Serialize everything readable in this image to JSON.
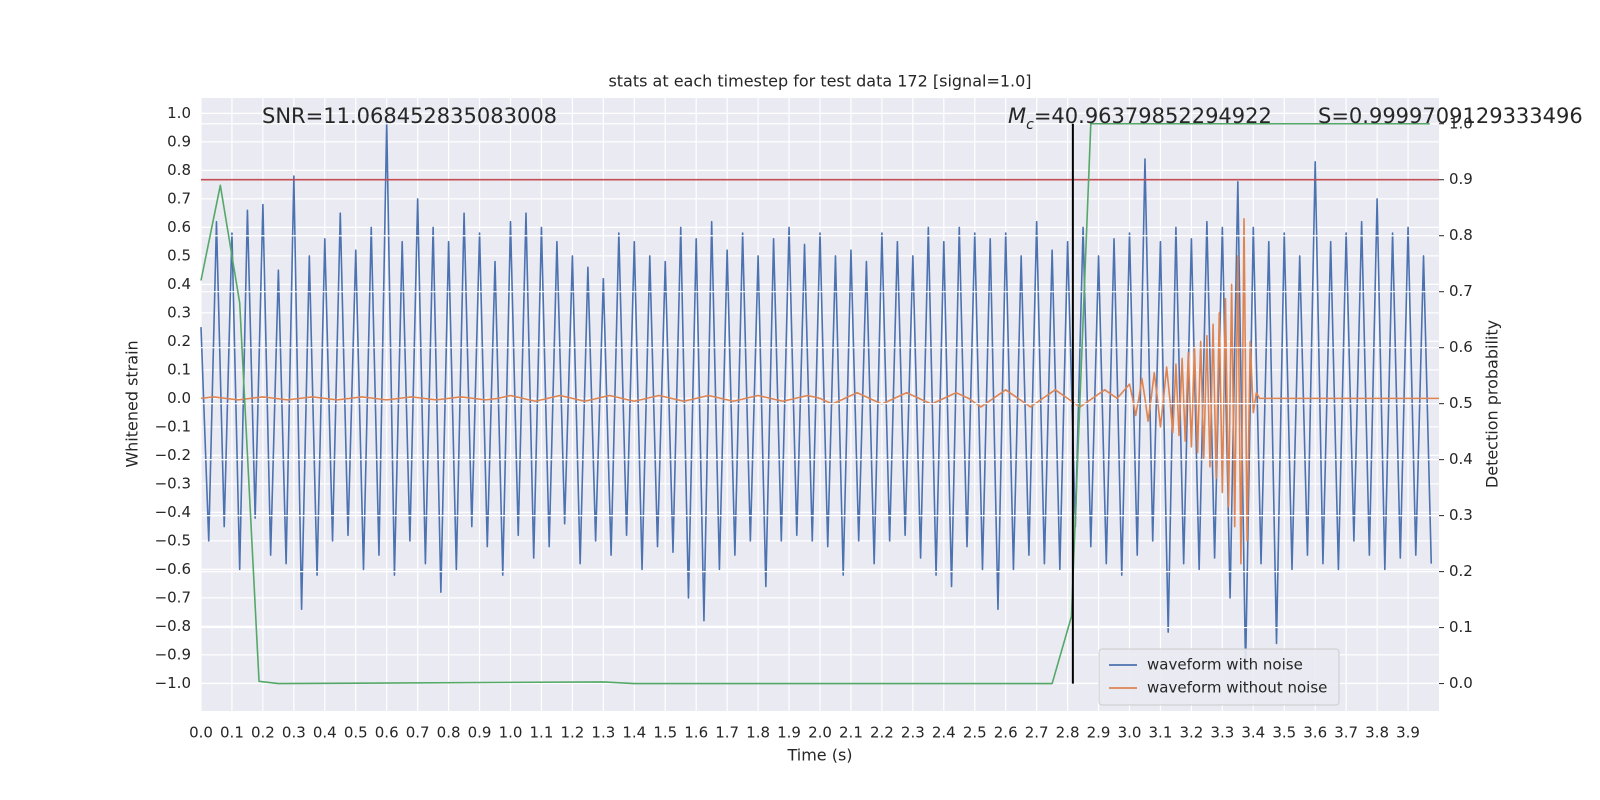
{
  "chart_data": {
    "type": "line",
    "title": "stats at each timestep for test data 172 [signal=1.0]",
    "x_label": "Time (s)",
    "y_label": "Whitened strain",
    "y2_label": "Detection probability",
    "annotations": {
      "snr": "SNR=11.068452835083008",
      "mc_symbol": "M",
      "mc_subscript": "c",
      "mc_value": "=40.96379852294922",
      "s": "S=0.9999709129333496"
    },
    "xlim": [
      0,
      4.0
    ],
    "ylim": [
      -1.097,
      1.054
    ],
    "y2lim": [
      -0.049,
      1.046
    ],
    "xticks": [
      {
        "value": 0,
        "label": "0.0"
      },
      0.1,
      0.2,
      0.3,
      0.4,
      0.5,
      0.6,
      0.7,
      0.8,
      0.9,
      {
        "value": 1,
        "label": "1.0"
      },
      1.1,
      1.2,
      1.3,
      1.4,
      1.5,
      1.6,
      1.7,
      1.8,
      1.9,
      {
        "value": 2,
        "label": "2.0"
      },
      2.1,
      2.2,
      2.3,
      2.4,
      2.5,
      2.6,
      2.7,
      2.8,
      2.9,
      {
        "value": 3,
        "label": "3.0"
      },
      3.1,
      3.2,
      3.3,
      3.4,
      3.5,
      3.6,
      3.7,
      3.8,
      3.9
    ],
    "yticks": [
      {
        "value": -1,
        "label": "−1.0"
      },
      {
        "value": -0.9,
        "label": "−0.9"
      },
      {
        "value": -0.8,
        "label": "−0.8"
      },
      {
        "value": -0.7,
        "label": "−0.7"
      },
      {
        "value": -0.6,
        "label": "−0.6"
      },
      {
        "value": -0.5,
        "label": "−0.5"
      },
      {
        "value": -0.4,
        "label": "−0.4"
      },
      {
        "value": -0.3,
        "label": "−0.3"
      },
      {
        "value": -0.2,
        "label": "−0.2"
      },
      {
        "value": -0.1,
        "label": "−0.1"
      },
      {
        "value": 0,
        "label": "0.0"
      },
      0.1,
      0.2,
      0.3,
      0.4,
      0.5,
      0.6,
      0.7,
      0.8,
      0.9,
      {
        "value": 1,
        "label": "1.0"
      }
    ],
    "y2ticks": [
      {
        "value": 0,
        "label": "0.0"
      },
      0.1,
      0.2,
      0.3,
      0.4,
      0.5,
      0.6,
      0.7,
      0.8,
      0.9,
      {
        "value": 1,
        "label": "1.0"
      }
    ],
    "grid": true,
    "legend": "lower right",
    "series": [
      {
        "name": "waveform with noise",
        "color": "#4c72b0",
        "x": [
          0,
          0.025,
          0.05,
          0.075,
          0.1,
          0.125,
          0.15,
          0.175,
          0.2,
          0.225,
          0.25,
          0.275,
          0.3,
          0.325,
          0.35,
          0.375,
          0.4,
          0.425,
          0.45,
          0.475,
          0.5,
          0.525,
          0.55,
          0.575,
          0.6,
          0.625,
          0.65,
          0.675,
          0.7,
          0.725,
          0.75,
          0.775,
          0.8,
          0.825,
          0.85,
          0.875,
          0.9,
          0.925,
          0.95,
          0.975,
          1,
          1.025,
          1.05,
          1.075,
          1.1,
          1.125,
          1.15,
          1.175,
          1.2,
          1.225,
          1.25,
          1.275,
          1.3,
          1.325,
          1.35,
          1.375,
          1.4,
          1.425,
          1.45,
          1.475,
          1.5,
          1.525,
          1.55,
          1.575,
          1.6,
          1.625,
          1.65,
          1.675,
          1.7,
          1.725,
          1.75,
          1.775,
          1.8,
          1.825,
          1.85,
          1.875,
          1.9,
          1.925,
          1.95,
          1.975,
          2,
          2.025,
          2.05,
          2.075,
          2.1,
          2.125,
          2.15,
          2.175,
          2.2,
          2.225,
          2.25,
          2.275,
          2.3,
          2.325,
          2.35,
          2.375,
          2.4,
          2.425,
          2.45,
          2.475,
          2.5,
          2.525,
          2.55,
          2.575,
          2.6,
          2.625,
          2.65,
          2.675,
          2.7,
          2.725,
          2.75,
          2.775,
          2.8,
          2.825,
          2.85,
          2.875,
          2.9,
          2.925,
          2.95,
          2.975,
          3,
          3.025,
          3.05,
          3.075,
          3.1,
          3.125,
          3.15,
          3.175,
          3.2,
          3.225,
          3.25,
          3.275,
          3.3,
          3.325,
          3.35,
          3.375,
          3.4,
          3.425,
          3.45,
          3.475,
          3.5,
          3.525,
          3.55,
          3.575,
          3.6,
          3.625,
          3.65,
          3.675,
          3.7,
          3.725,
          3.75,
          3.775,
          3.8,
          3.825,
          3.85,
          3.875,
          3.9,
          3.925,
          3.95,
          3.975
        ],
        "values": [
          0.25,
          -0.5,
          0.62,
          -0.45,
          0.58,
          -0.6,
          0.66,
          -0.42,
          0.68,
          -0.55,
          0.45,
          -0.58,
          0.78,
          -0.74,
          0.5,
          -0.62,
          0.56,
          -0.5,
          0.65,
          -0.48,
          0.52,
          -0.6,
          0.6,
          -0.55,
          0.97,
          -0.62,
          0.55,
          -0.5,
          0.7,
          -0.58,
          0.6,
          -0.68,
          0.55,
          -0.6,
          0.65,
          -0.45,
          0.58,
          -0.52,
          0.48,
          -0.62,
          0.62,
          -0.48,
          0.65,
          -0.56,
          0.6,
          -0.52,
          0.55,
          -0.44,
          0.5,
          -0.58,
          0.46,
          -0.5,
          0.42,
          -0.55,
          0.58,
          -0.48,
          0.55,
          -0.6,
          0.5,
          -0.52,
          0.48,
          -0.54,
          0.6,
          -0.7,
          0.56,
          -0.78,
          0.62,
          -0.6,
          0.52,
          -0.55,
          0.58,
          -0.5,
          0.5,
          -0.66,
          0.56,
          -0.5,
          0.6,
          -0.48,
          0.54,
          -0.5,
          0.58,
          -0.52,
          0.5,
          -0.62,
          0.52,
          -0.5,
          0.48,
          -0.58,
          0.58,
          -0.5,
          0.55,
          -0.48,
          0.5,
          -0.56,
          0.6,
          -0.62,
          0.55,
          -0.66,
          0.6,
          -0.52,
          0.58,
          -0.6,
          0.56,
          -0.74,
          0.58,
          -0.6,
          0.5,
          -0.55,
          0.62,
          -0.58,
          0.52,
          -0.6,
          0.55,
          -0.45,
          0.6,
          -0.52,
          0.5,
          -0.58,
          0.56,
          -0.62,
          0.58,
          -0.55,
          0.84,
          -0.5,
          0.55,
          -0.82,
          0.6,
          -0.58,
          0.56,
          -0.6,
          0.62,
          -0.56,
          0.6,
          -0.7,
          0.76,
          -0.95,
          0.6,
          -0.58,
          0.55,
          -0.86,
          0.58,
          -0.6,
          0.5,
          -0.55,
          0.83,
          -0.58,
          0.55,
          -0.6,
          0.58,
          -0.5,
          0.62,
          -0.55,
          0.7,
          -0.6,
          0.58,
          -0.56,
          0.6,
          -0.55,
          0.5,
          -0.58
        ]
      },
      {
        "name": "waveform without noise",
        "color": "#dd8452",
        "x": [
          0,
          0.04,
          0.08,
          0.12,
          0.16,
          0.2,
          0.24,
          0.28,
          0.32,
          0.36,
          0.4,
          0.44,
          0.48,
          0.52,
          0.56,
          0.6,
          0.64,
          0.68,
          0.72,
          0.76,
          0.8,
          0.84,
          0.88,
          0.92,
          0.96,
          1,
          1.04,
          1.08,
          1.12,
          1.16,
          1.2,
          1.24,
          1.28,
          1.32,
          1.36,
          1.4,
          1.44,
          1.48,
          1.52,
          1.56,
          1.6,
          1.64,
          1.68,
          1.72,
          1.76,
          1.8,
          1.84,
          1.88,
          1.92,
          1.96,
          2,
          2.04,
          2.08,
          2.12,
          2.16,
          2.2,
          2.24,
          2.28,
          2.32,
          2.36,
          2.4,
          2.44,
          2.48,
          2.52,
          2.56,
          2.6,
          2.64,
          2.68,
          2.72,
          2.76,
          2.8,
          2.84,
          2.88,
          2.92,
          2.96,
          3,
          3.01,
          3.02,
          3.03,
          3.04,
          3.05,
          3.06,
          3.07,
          3.08,
          3.09,
          3.1,
          3.11,
          3.12,
          3.13,
          3.14,
          3.15,
          3.16,
          3.17,
          3.18,
          3.19,
          3.2,
          3.21,
          3.22,
          3.23,
          3.24,
          3.25,
          3.26,
          3.27,
          3.28,
          3.29,
          3.3,
          3.31,
          3.32,
          3.33,
          3.34,
          3.35,
          3.36,
          3.37,
          3.38,
          3.39,
          3.4,
          3.41,
          3.42,
          3.43,
          3.44,
          3.5,
          4
        ],
        "values": [
          0,
          0.005,
          0,
          -0.005,
          0,
          0.005,
          0,
          -0.005,
          0,
          0.005,
          0,
          -0.005,
          0,
          0.005,
          0,
          -0.005,
          0,
          0.005,
          0,
          -0.005,
          0,
          0.005,
          0,
          -0.005,
          0,
          0.01,
          0,
          -0.01,
          0,
          0.01,
          0,
          -0.01,
          0,
          0.01,
          0,
          -0.01,
          0,
          0.01,
          0,
          -0.01,
          0,
          0.01,
          0,
          -0.01,
          0,
          0.01,
          0,
          -0.01,
          0,
          0.01,
          0,
          -0.02,
          0,
          0.02,
          0,
          -0.02,
          0,
          0.02,
          0,
          -0.02,
          0,
          0.02,
          0,
          -0.03,
          0,
          0.03,
          0,
          -0.03,
          0,
          0.03,
          0,
          -0.03,
          0,
          0.03,
          0,
          0.05,
          0,
          -0.06,
          0,
          0.07,
          0,
          -0.08,
          0,
          0.09,
          0,
          -0.1,
          0,
          0.11,
          0,
          -0.12,
          0.12,
          -0.13,
          0.14,
          -0.15,
          0.16,
          -0.17,
          0.18,
          -0.19,
          0.2,
          -0.21,
          0.22,
          -0.24,
          0.26,
          -0.28,
          0.3,
          -0.33,
          0.35,
          -0.38,
          0.4,
          -0.45,
          0.5,
          -0.58,
          0.63,
          -0.5,
          0.2,
          -0.05,
          0.02,
          0,
          0,
          0,
          0,
          0
        ]
      },
      {
        "color": "#55a868",
        "axis": "y2",
        "x": [
          0,
          0.0625,
          0.125,
          0.1875,
          0.25,
          1.3,
          1.4,
          2.75,
          2.8125,
          2.875,
          3.97
        ],
        "values": [
          0.72,
          0.89,
          0.68,
          0.004,
          0,
          0.003,
          0,
          0,
          0.12,
          1.0,
          1.0
        ]
      }
    ],
    "threshold": {
      "axis": "y2",
      "value": 0.9,
      "color": "#c44e52"
    },
    "vline": {
      "x": 2.817,
      "y2": [
        0,
        1
      ],
      "color": "#000000"
    }
  }
}
